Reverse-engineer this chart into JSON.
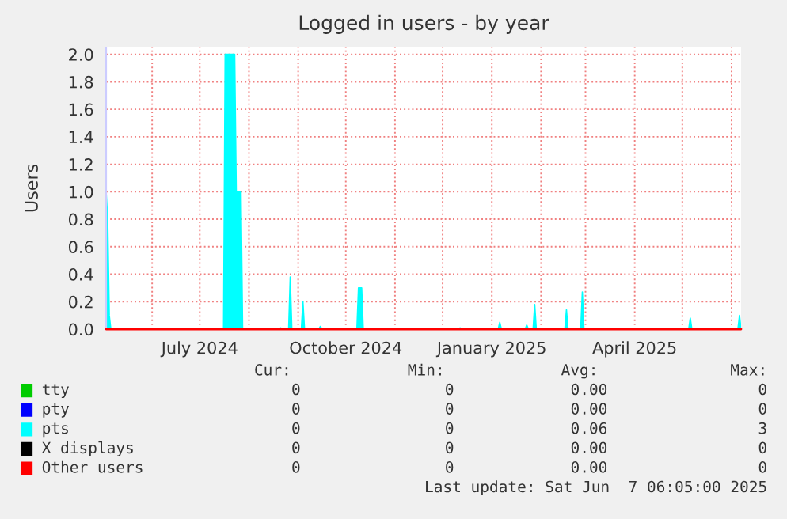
{
  "chart_data": {
    "type": "area",
    "title": "Logged in users - by year",
    "ylabel": "Users",
    "xlim": [
      "2024-05-03",
      "2025-06-07"
    ],
    "ylim": [
      0,
      2.05
    ],
    "yticks": [
      0.2,
      0.4,
      0.6,
      0.8,
      {
        "value": 1.0,
        "label": "1.0"
      },
      1.2,
      1.4,
      1.6,
      1.8,
      {
        "value": 2.0,
        "label": "2.0"
      },
      {
        "value": 0,
        "label": "0.0"
      }
    ],
    "xticks": [
      {
        "value": "2024-06-01",
        "label": null
      },
      {
        "value": "2024-07-01",
        "label": "July 2024"
      },
      {
        "value": "2024-08-01",
        "label": null
      },
      {
        "value": "2024-09-01",
        "label": null
      },
      {
        "value": "2024-10-01",
        "label": "October 2024"
      },
      {
        "value": "2024-11-01",
        "label": null
      },
      {
        "value": "2024-12-01",
        "label": null
      },
      {
        "value": "2025-01-01",
        "label": "January 2025"
      },
      {
        "value": "2025-02-01",
        "label": null
      },
      {
        "value": "2025-03-01",
        "label": null
      },
      {
        "value": "2025-04-01",
        "label": "April 2025"
      },
      {
        "value": "2025-05-01",
        "label": null
      },
      {
        "value": "2025-06-01",
        "label": null
      }
    ],
    "grid": true,
    "legend": "bottom",
    "series": [
      {
        "name": "tty",
        "type": "line",
        "color": "#00cc00"
      },
      {
        "name": "pty",
        "type": "line",
        "color": "#0000ff"
      },
      {
        "name": "pts",
        "color": "#00ffff",
        "x": [
          "2024-05-03",
          "2024-05-04",
          "2024-05-05",
          "2024-05-06",
          "2024-07-16",
          "2024-07-17",
          "2024-07-23",
          "2024-07-24",
          "2024-07-27",
          "2024-07-28",
          "2024-08-20",
          "2024-08-21",
          "2024-08-22",
          "2024-08-26",
          "2024-08-27",
          "2024-08-28",
          "2024-09-03",
          "2024-09-04",
          "2024-09-05",
          "2024-09-14",
          "2024-09-15",
          "2024-09-16",
          "2024-10-08",
          "2024-10-09",
          "2024-10-11",
          "2024-10-12",
          "2024-12-11",
          "2024-12-12",
          "2024-12-13",
          "2025-01-05",
          "2025-01-06",
          "2025-01-07",
          "2025-01-22",
          "2025-01-23",
          "2025-01-24",
          "2025-01-27",
          "2025-01-28",
          "2025-01-29",
          "2025-02-16",
          "2025-02-17",
          "2025-02-18",
          "2025-02-26",
          "2025-02-27",
          "2025-02-28",
          "2025-05-05",
          "2025-05-06",
          "2025-05-07",
          "2025-06-05",
          "2025-06-06",
          "2025-06-07"
        ],
        "values": [
          1.0,
          0.8,
          0.1,
          0,
          0,
          2.0,
          2.0,
          1.0,
          1.0,
          0,
          0,
          0.01,
          0,
          0,
          0.38,
          0,
          0,
          0.2,
          0,
          0,
          0.02,
          0,
          0,
          0.3,
          0.3,
          0,
          0,
          0.01,
          0,
          0,
          0.05,
          0,
          0,
          0.03,
          0,
          0,
          0.18,
          0,
          0,
          0.14,
          0,
          0,
          0.27,
          0,
          0,
          0.08,
          0,
          0,
          0.1,
          0
        ]
      },
      {
        "name": "X displays",
        "type": "line",
        "color": "#000000"
      },
      {
        "name": "Other users",
        "type": "line",
        "color": "#ff0000",
        "x": [
          "2024-05-03",
          "2025-06-07"
        ],
        "values": [
          0,
          0
        ]
      }
    ],
    "annotations": [
      "Cur:",
      "Min:",
      "Avg:",
      "Max:",
      "0",
      "0",
      "0.00",
      "0",
      "0",
      "0",
      "0.00",
      "0",
      "0",
      "0",
      "0.06",
      "3",
      "0",
      "0",
      "0.00",
      "0",
      "0",
      "0",
      "0.00",
      "0",
      "Last update: Sat Jun  7 06:05:00 2025"
    ]
  }
}
